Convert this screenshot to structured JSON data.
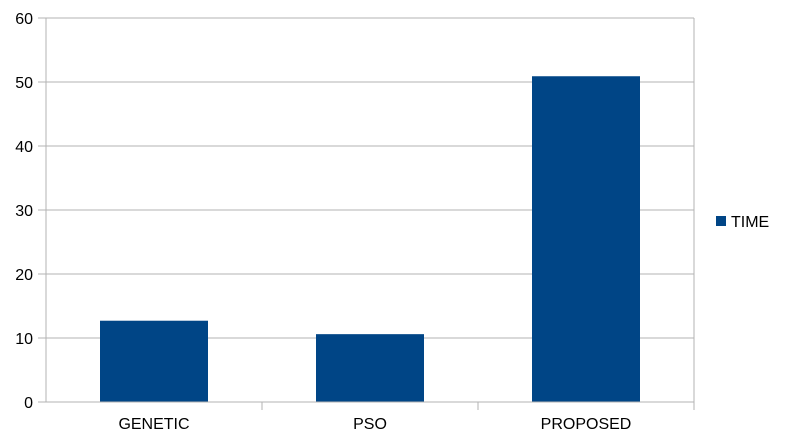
{
  "chart_data": {
    "type": "bar",
    "categories": [
      "GENETIC",
      "PSO",
      "PROPOSED"
    ],
    "series": [
      {
        "name": "TIME",
        "values": [
          12.7,
          10.6,
          50.9
        ],
        "color": "#004586"
      }
    ],
    "ylim": [
      0,
      60
    ],
    "yticks": [
      0,
      10,
      20,
      30,
      40,
      50,
      60
    ],
    "grid": true,
    "legend_position": "right",
    "title": "",
    "xlabel": "",
    "ylabel": ""
  }
}
